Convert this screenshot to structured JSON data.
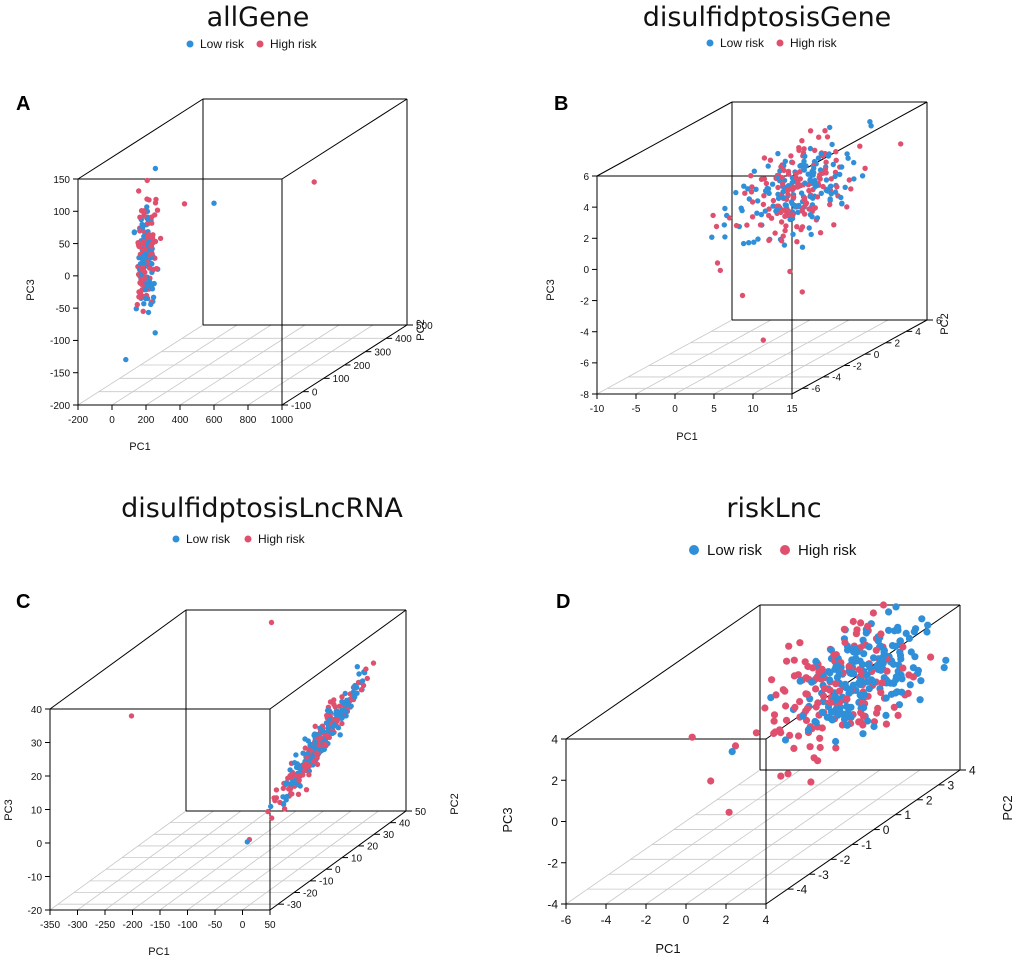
{
  "colors": {
    "low": "#2f8fd8",
    "high": "#e0506e"
  },
  "legend": {
    "low_label": "Low risk",
    "high_label": "High risk"
  },
  "chart_data": [
    {
      "panel": "A",
      "type": "scatter",
      "title": "allGene",
      "xlabel": "PC1",
      "ylabel": "PC2",
      "zlabel": "PC3",
      "xlim": [
        -200,
        1000
      ],
      "ylim": [
        -100,
        500
      ],
      "zlim": [
        -200,
        150
      ],
      "xticks": [
        -200,
        0,
        200,
        400,
        600,
        800,
        1000
      ],
      "yticks": [
        -100,
        0,
        100,
        200,
        300,
        400,
        500
      ],
      "zticks": [
        -200,
        -150,
        -100,
        -50,
        0,
        50,
        100,
        150
      ],
      "series": [
        {
          "name": "Low risk",
          "cluster": {
            "x": [
              30,
              10
            ],
            "y": [
              40,
              20
            ],
            "z": [
              0,
              35
            ],
            "n": 110
          },
          "outliers": [
            {
              "x": 110,
              "y": 300,
              "z": 30
            },
            {
              "x": 20,
              "y": -50,
              "z": -140
            },
            {
              "x": 10,
              "y": 100,
              "z": 125
            }
          ]
        },
        {
          "name": "High risk",
          "cluster": {
            "x": [
              30,
              10
            ],
            "y": [
              40,
              20
            ],
            "z": [
              0,
              40
            ],
            "n": 110
          },
          "outliers": [
            {
              "x": 920,
              "y": 120,
              "z": 100
            },
            {
              "x": 120,
              "y": 150,
              "z": 60
            },
            {
              "x": 60,
              "y": 60,
              "z": 80
            },
            {
              "x": 90,
              "y": 60,
              "z": 25
            }
          ]
        }
      ]
    },
    {
      "panel": "B",
      "type": "scatter",
      "title": "disulfidptosisGene",
      "xlabel": "PC1",
      "ylabel": "PC2",
      "zlabel": "PC3",
      "xlim": [
        -10,
        15
      ],
      "ylim": [
        -7,
        6
      ],
      "zlim": [
        -8,
        6
      ],
      "xticks": [
        -10,
        -5,
        0,
        5,
        10,
        15
      ],
      "yticks": [
        -6,
        -4,
        -2,
        0,
        2,
        4,
        6
      ],
      "zticks": [
        -8,
        -6,
        -4,
        -2,
        0,
        2,
        4,
        6
      ],
      "series": [
        {
          "name": "Low risk",
          "cluster": {
            "x": [
              5,
              2.5
            ],
            "y": [
              1,
              2.0
            ],
            "z": [
              2.2,
              1.3
            ],
            "n": 150
          },
          "outliers": [
            {
              "x": 13,
              "y": 2,
              "z": 6.2
            },
            {
              "x": 10.5,
              "y": 4,
              "z": 5.2
            },
            {
              "x": -3,
              "y": 0,
              "z": 0.3
            }
          ]
        },
        {
          "name": "High risk",
          "cluster": {
            "x": [
              5,
              2.5
            ],
            "y": [
              1,
              2.0
            ],
            "z": [
              2.0,
              1.3
            ],
            "n": 150
          },
          "outliers": [
            {
              "x": -4,
              "y": 0,
              "z": 0.2
            },
            {
              "x": 2,
              "y": -2,
              "z": -3.5
            },
            {
              "x": 7,
              "y": 0,
              "z": -4.0
            },
            {
              "x": 6,
              "y": -3,
              "z": -6
            }
          ]
        }
      ]
    },
    {
      "panel": "C",
      "type": "scatter",
      "title": "disulfidptosisLncRNA",
      "xlabel": "PC1",
      "ylabel": "PC2",
      "zlabel": "PC3",
      "xlim": [
        -350,
        50
      ],
      "ylim": [
        -35,
        50
      ],
      "zlim": [
        -20,
        40
      ],
      "xticks": [
        -350,
        -300,
        -250,
        -200,
        -150,
        -100,
        -50,
        0,
        50
      ],
      "yticks": [
        -30,
        -20,
        -10,
        0,
        10,
        20,
        30,
        40,
        50
      ],
      "zticks": [
        -20,
        -10,
        0,
        10,
        20,
        30,
        40
      ],
      "series": [
        {
          "name": "Low risk",
          "cluster": {
            "x": [
              10,
              10
            ],
            "y": [
              10,
              10
            ],
            "z": [
              15,
              6
            ],
            "n": 150,
            "corr": true
          },
          "outliers": [
            {
              "x": 30,
              "y": 28,
              "z": 26
            }
          ]
        },
        {
          "name": "High risk",
          "cluster": {
            "x": [
              10,
              10
            ],
            "y": [
              10,
              10
            ],
            "z": [
              15,
              6
            ],
            "n": 150,
            "corr": true
          },
          "outliers": [
            {
              "x": -180,
              "y": 45,
              "z": 38
            },
            {
              "x": -260,
              "y": -15,
              "z": 31
            },
            {
              "x": 0,
              "y": 5,
              "z": 2
            },
            {
              "x": 0,
              "y": 20,
              "z": 23
            }
          ]
        }
      ]
    },
    {
      "panel": "D",
      "type": "scatter",
      "title": "riskLnc",
      "xlabel": "PC1",
      "ylabel": "PC2",
      "zlabel": "PC3",
      "xlim": [
        -6,
        4
      ],
      "ylim": [
        -5,
        4
      ],
      "zlim": [
        -4,
        4
      ],
      "xticks": [
        -6,
        -4,
        -2,
        0,
        2,
        4
      ],
      "yticks": [
        -4,
        -3,
        -2,
        -1,
        0,
        1,
        2,
        3,
        4
      ],
      "zticks": [
        -4,
        -2,
        0,
        2,
        4
      ],
      "series": [
        {
          "name": "Low risk",
          "cluster": {
            "x": [
              1.8,
              1.1
            ],
            "y": [
              1.5,
              1.3
            ],
            "z": [
              2.5,
              1.1
            ],
            "n": 200
          },
          "outliers": [
            {
              "x": -2,
              "y": -1,
              "z": 0.5
            }
          ]
        },
        {
          "name": "High risk",
          "cluster": {
            "x": [
              1.0,
              1.3
            ],
            "y": [
              1.0,
              1.5
            ],
            "z": [
              1.8,
              1.4
            ],
            "n": 160
          },
          "outliers": [
            {
              "x": -4,
              "y": -1,
              "z": 1.2
            },
            {
              "x": 0,
              "y": -3,
              "z": -1
            },
            {
              "x": -2,
              "y": -2,
              "z": -0.2
            }
          ]
        }
      ]
    }
  ]
}
